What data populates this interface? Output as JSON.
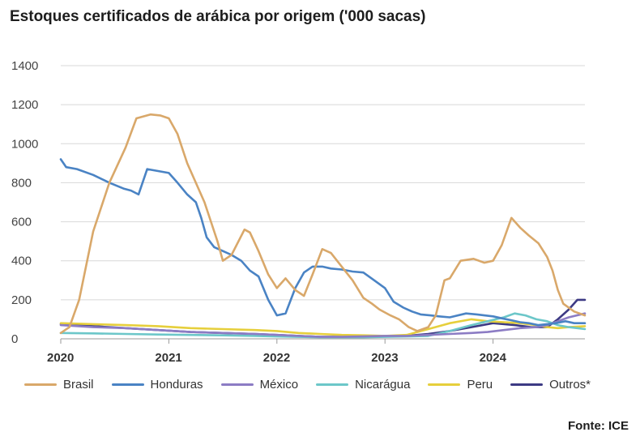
{
  "chart_data": {
    "type": "line",
    "title": "Estoques certificados de arábica por origem ('000 sacas)",
    "xlabel": "",
    "ylabel": "",
    "xlim": [
      2020.0,
      2024.85
    ],
    "ylim": [
      0,
      1400
    ],
    "x_ticks": [
      "2020",
      "2021",
      "2022",
      "2023",
      "2024"
    ],
    "y_ticks": [
      "0",
      "200",
      "400",
      "600",
      "800",
      "1000",
      "1200",
      "1400"
    ],
    "grid": "horizontal",
    "legend_position": "bottom",
    "source": "Fonte: ICE",
    "series": [
      {
        "name": "Brasil",
        "color": "#d9a86a",
        "x": [
          2020.0,
          2020.08,
          2020.17,
          2020.3,
          2020.45,
          2020.6,
          2020.7,
          2020.83,
          2020.92,
          2021.0,
          2021.08,
          2021.17,
          2021.33,
          2021.45,
          2021.5,
          2021.58,
          2021.7,
          2021.75,
          2021.83,
          2021.92,
          2022.0,
          2022.08,
          2022.17,
          2022.25,
          2022.33,
          2022.42,
          2022.5,
          2022.6,
          2022.7,
          2022.8,
          2022.88,
          2022.95,
          2023.05,
          2023.13,
          2023.22,
          2023.3,
          2023.4,
          2023.47,
          2023.55,
          2023.6,
          2023.7,
          2023.82,
          2023.92,
          2024.0,
          2024.08,
          2024.17,
          2024.25,
          2024.33,
          2024.42,
          2024.5,
          2024.55,
          2024.6,
          2024.65,
          2024.75,
          2024.85
        ],
        "y": [
          30,
          60,
          200,
          550,
          800,
          980,
          1130,
          1150,
          1145,
          1130,
          1050,
          900,
          700,
          500,
          400,
          430,
          560,
          545,
          450,
          330,
          260,
          310,
          250,
          220,
          330,
          460,
          440,
          370,
          300,
          210,
          180,
          150,
          120,
          100,
          60,
          40,
          60,
          120,
          300,
          310,
          400,
          410,
          390,
          400,
          480,
          620,
          570,
          530,
          490,
          420,
          350,
          250,
          180,
          140,
          120
        ]
      },
      {
        "name": "Honduras",
        "color": "#4a83c4",
        "x": [
          2020.0,
          2020.05,
          2020.15,
          2020.3,
          2020.45,
          2020.58,
          2020.65,
          2020.72,
          2020.8,
          2020.9,
          2021.0,
          2021.08,
          2021.17,
          2021.25,
          2021.3,
          2021.35,
          2021.42,
          2021.5,
          2021.58,
          2021.67,
          2021.75,
          2021.83,
          2021.92,
          2022.0,
          2022.08,
          2022.17,
          2022.25,
          2022.33,
          2022.42,
          2022.5,
          2022.6,
          2022.7,
          2022.8,
          2022.9,
          2023.0,
          2023.08,
          2023.17,
          2023.25,
          2023.33,
          2023.42,
          2023.5,
          2023.6,
          2023.75,
          2023.85,
          2023.92,
          2024.0,
          2024.08,
          2024.17,
          2024.25,
          2024.33,
          2024.42,
          2024.5,
          2024.58,
          2024.67,
          2024.75,
          2024.85
        ],
        "y": [
          920,
          880,
          870,
          840,
          800,
          770,
          760,
          740,
          870,
          860,
          850,
          800,
          740,
          700,
          620,
          520,
          470,
          450,
          430,
          400,
          350,
          320,
          200,
          120,
          130,
          260,
          340,
          370,
          370,
          360,
          355,
          345,
          340,
          300,
          260,
          190,
          160,
          140,
          125,
          120,
          115,
          110,
          130,
          125,
          120,
          115,
          105,
          95,
          85,
          80,
          70,
          75,
          80,
          90,
          80,
          80
        ]
      },
      {
        "name": "México",
        "color": "#8c7cc4",
        "x": [
          2020.0,
          2020.3,
          2020.6,
          2020.9,
          2021.2,
          2021.5,
          2021.8,
          2022.0,
          2022.2,
          2022.4,
          2022.6,
          2022.8,
          2023.0,
          2023.2,
          2023.4,
          2023.6,
          2023.8,
          2023.95,
          2024.1,
          2024.25,
          2024.4,
          2024.5,
          2024.6,
          2024.7,
          2024.85
        ],
        "y": [
          70,
          60,
          55,
          45,
          35,
          30,
          25,
          20,
          15,
          10,
          10,
          12,
          15,
          15,
          20,
          25,
          30,
          35,
          45,
          55,
          60,
          70,
          90,
          110,
          130
        ]
      },
      {
        "name": "Nicarágua",
        "color": "#6cc7c9",
        "x": [
          2020.0,
          2020.3,
          2020.6,
          2020.9,
          2021.2,
          2021.5,
          2021.8,
          2022.0,
          2022.2,
          2022.4,
          2022.6,
          2022.8,
          2023.0,
          2023.2,
          2023.4,
          2023.6,
          2023.8,
          2023.95,
          2024.1,
          2024.2,
          2024.3,
          2024.4,
          2024.5,
          2024.6,
          2024.7,
          2024.85
        ],
        "y": [
          30,
          28,
          25,
          22,
          20,
          18,
          15,
          12,
          10,
          8,
          8,
          8,
          10,
          12,
          15,
          40,
          70,
          90,
          110,
          130,
          120,
          100,
          90,
          70,
          60,
          50
        ]
      },
      {
        "name": "Peru",
        "color": "#e6cf3c",
        "x": [
          2020.0,
          2020.3,
          2020.6,
          2020.9,
          2021.2,
          2021.5,
          2021.8,
          2022.0,
          2022.2,
          2022.4,
          2022.6,
          2022.8,
          2023.0,
          2023.2,
          2023.4,
          2023.6,
          2023.8,
          2023.95,
          2024.1,
          2024.25,
          2024.4,
          2024.5,
          2024.6,
          2024.7,
          2024.85
        ],
        "y": [
          80,
          75,
          70,
          65,
          55,
          50,
          45,
          40,
          30,
          25,
          20,
          18,
          15,
          20,
          50,
          80,
          100,
          90,
          85,
          80,
          70,
          60,
          55,
          60,
          65
        ]
      },
      {
        "name": "Outros*",
        "color": "#3d3a84",
        "x": [
          2020.0,
          2020.3,
          2020.6,
          2020.9,
          2021.2,
          2021.5,
          2021.8,
          2022.0,
          2022.2,
          2022.4,
          2022.6,
          2022.8,
          2023.0,
          2023.2,
          2023.4,
          2023.6,
          2023.8,
          2024.0,
          2024.2,
          2024.35,
          2024.5,
          2024.6,
          2024.7,
          2024.78,
          2024.85
        ],
        "y": [
          75,
          65,
          55,
          45,
          35,
          30,
          25,
          20,
          15,
          10,
          10,
          10,
          12,
          15,
          25,
          40,
          60,
          80,
          70,
          60,
          60,
          100,
          150,
          200,
          200
        ]
      }
    ]
  }
}
